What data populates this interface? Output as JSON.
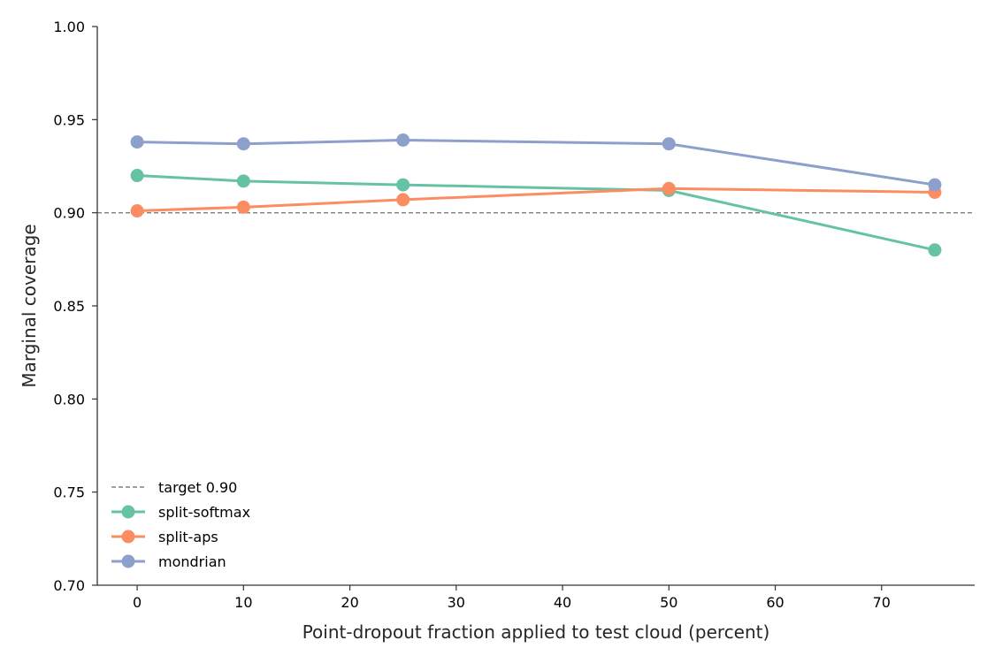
{
  "chart_data": {
    "type": "line",
    "title": "",
    "xlabel": "Point-dropout fraction applied to test cloud (percent)",
    "ylabel": "Marginal coverage",
    "xlim": [
      -3.75,
      78.75
    ],
    "ylim": [
      0.7,
      1.0
    ],
    "xticks": [
      0,
      10,
      20,
      30,
      40,
      50,
      60,
      70
    ],
    "xtick_labels": [
      "0",
      "10",
      "20",
      "30",
      "40",
      "50",
      "60",
      "70"
    ],
    "yticks": [
      0.7,
      0.75,
      0.8,
      0.85,
      0.9,
      0.95,
      1.0
    ],
    "ytick_labels": [
      "0.70",
      "0.75",
      "0.80",
      "0.85",
      "0.90",
      "0.95",
      "1.00"
    ],
    "grid": false,
    "legend_position": "lower-left",
    "reference_line": {
      "label": "target 0.90",
      "y": 0.9,
      "color": "#808080",
      "style": "dashed"
    },
    "x": [
      0,
      10,
      25,
      50,
      75
    ],
    "series": [
      {
        "name": "split-softmax",
        "color": "#66c2a5",
        "values": [
          0.92,
          0.917,
          0.915,
          0.912,
          0.88
        ]
      },
      {
        "name": "split-aps",
        "color": "#fc8d62",
        "values": [
          0.901,
          0.903,
          0.907,
          0.913,
          0.911
        ]
      },
      {
        "name": "mondrian",
        "color": "#8da0cb",
        "values": [
          0.938,
          0.937,
          0.939,
          0.937,
          0.915
        ]
      }
    ]
  }
}
